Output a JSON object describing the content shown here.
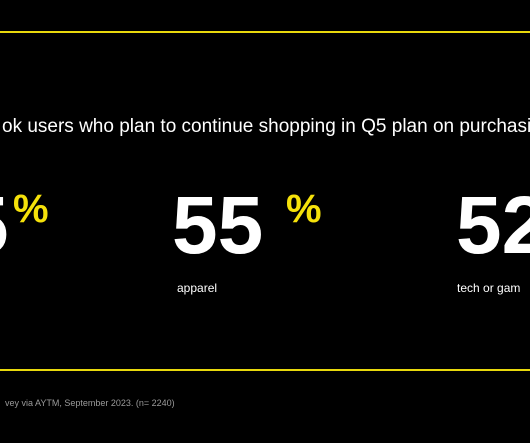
{
  "slide": {
    "heading": "ok users who plan to continue shopping in Q5 plan on purchasi",
    "stats": [
      {
        "value": "5",
        "unit": "%",
        "label": ""
      },
      {
        "value": "55",
        "unit": "%",
        "label": "apparel"
      },
      {
        "value": "52",
        "unit": "",
        "label": "tech or gam"
      }
    ],
    "footnote": "vey via AYTM, September 2023. (n= 2240)"
  }
}
